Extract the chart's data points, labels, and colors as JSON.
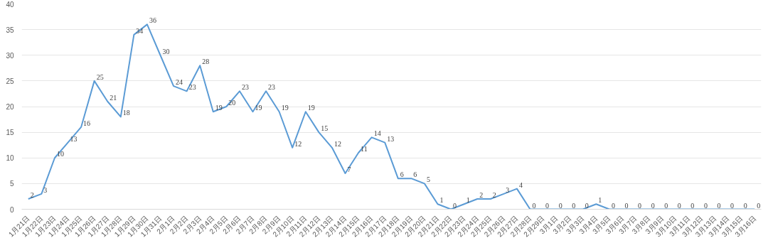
{
  "chart_data": {
    "type": "line",
    "categories": [
      "1月21日",
      "1月22日",
      "1月23日",
      "1月24日",
      "1月25日",
      "1月26日",
      "1月27日",
      "1月28日",
      "1月29日",
      "1月30日",
      "1月31日",
      "2月1日",
      "2月2日",
      "2月3日",
      "2月4日",
      "2月5日",
      "2月6日",
      "2月7日",
      "2月8日",
      "2月9日",
      "2月10日",
      "2月11日",
      "2月12日",
      "2月13日",
      "2月14日",
      "2月15日",
      "2月16日",
      "2月17日",
      "2月18日",
      "2月19日",
      "2月20日",
      "2月21日",
      "2月22日",
      "2月23日",
      "2月24日",
      "2月25日",
      "2月26日",
      "2月27日",
      "2月28日",
      "2月29日",
      "3月1日",
      "3月2日",
      "3月3日",
      "3月4日",
      "3月5日",
      "3月6日",
      "3月7日",
      "3月8日",
      "3月9日",
      "3月10日",
      "3月11日",
      "3月12日",
      "3月13日",
      "3月14日",
      "3月15日",
      "3月16日"
    ],
    "series": [
      {
        "color": "#5b9bd5",
        "values": [
          2,
          3,
          10,
          13,
          16,
          25,
          21,
          18,
          34,
          36,
          30,
          24,
          23,
          28,
          19,
          20,
          23,
          19,
          23,
          19,
          12,
          19,
          15,
          12,
          7,
          11,
          14,
          13,
          6,
          6,
          5,
          1,
          0,
          1,
          2,
          2,
          3,
          4,
          0,
          0,
          0,
          0,
          0,
          1,
          0,
          0,
          0,
          0,
          0,
          0,
          0,
          0,
          0,
          0,
          0,
          0
        ]
      }
    ],
    "ylim": [
      0,
      40
    ],
    "yticks": [
      0,
      5,
      10,
      15,
      20,
      25,
      30,
      35,
      40
    ],
    "grid": "y",
    "data_labels": true,
    "marker": "none",
    "line_style": "solid"
  }
}
